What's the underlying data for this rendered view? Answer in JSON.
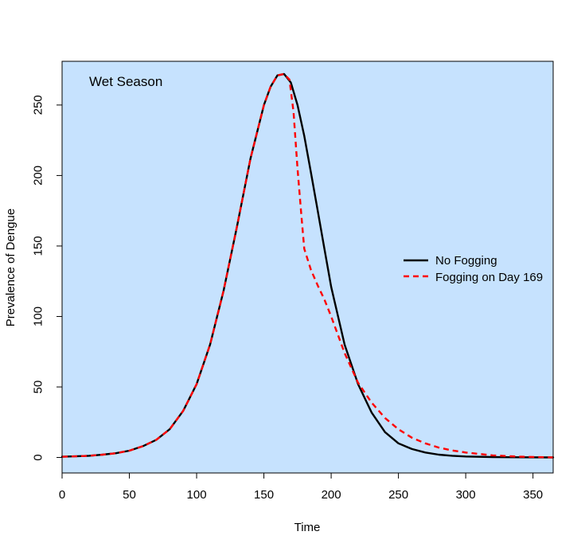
{
  "chart_data": {
    "type": "line",
    "title": "",
    "annotation": "Wet Season",
    "xlabel": "Time",
    "ylabel": "Prevalence of Dengue",
    "xlim": [
      0,
      365
    ],
    "ylim": [
      -11,
      281
    ],
    "xticks": [
      0,
      50,
      100,
      150,
      200,
      250,
      300,
      350
    ],
    "yticks": [
      0,
      50,
      100,
      150,
      200,
      250
    ],
    "background_color": "#c6e2fe",
    "legend_position": "right",
    "series": [
      {
        "name": "No Fogging",
        "color": "#000000",
        "dash": "solid",
        "x": [
          0,
          10,
          20,
          30,
          40,
          50,
          60,
          70,
          80,
          90,
          100,
          110,
          120,
          130,
          140,
          150,
          155,
          160,
          165,
          170,
          175,
          180,
          185,
          190,
          195,
          200,
          210,
          220,
          230,
          240,
          250,
          260,
          270,
          280,
          290,
          300,
          320,
          340,
          365
        ],
        "y": [
          0.5,
          0.8,
          1.2,
          2,
          3,
          4.8,
          8,
          12.5,
          20,
          33,
          52,
          80,
          118,
          164,
          212,
          250,
          263,
          271,
          272,
          266,
          250,
          228,
          202,
          175,
          148,
          121,
          80,
          52,
          32,
          18,
          10,
          6,
          3.5,
          2,
          1.2,
          0.7,
          0.3,
          0.1,
          0
        ]
      },
      {
        "name": "Fogging on Day 169",
        "color": "#ff0000",
        "dash": "dashed",
        "x": [
          0,
          10,
          20,
          30,
          40,
          50,
          60,
          70,
          80,
          90,
          100,
          110,
          120,
          130,
          140,
          150,
          155,
          160,
          165,
          169,
          172,
          175,
          178,
          180,
          185,
          190,
          195,
          200,
          210,
          220,
          230,
          240,
          250,
          260,
          270,
          280,
          290,
          300,
          320,
          340,
          365
        ],
        "y": [
          0.5,
          0.8,
          1.2,
          2,
          3,
          4.8,
          8,
          12.5,
          20,
          33,
          52,
          80,
          118,
          164,
          212,
          250,
          263,
          271,
          272,
          268,
          245,
          205,
          170,
          148,
          133,
          122,
          112,
          100,
          74,
          53,
          39,
          28,
          20,
          14,
          10,
          7,
          5,
          3.5,
          1.5,
          0.6,
          0
        ]
      }
    ]
  }
}
